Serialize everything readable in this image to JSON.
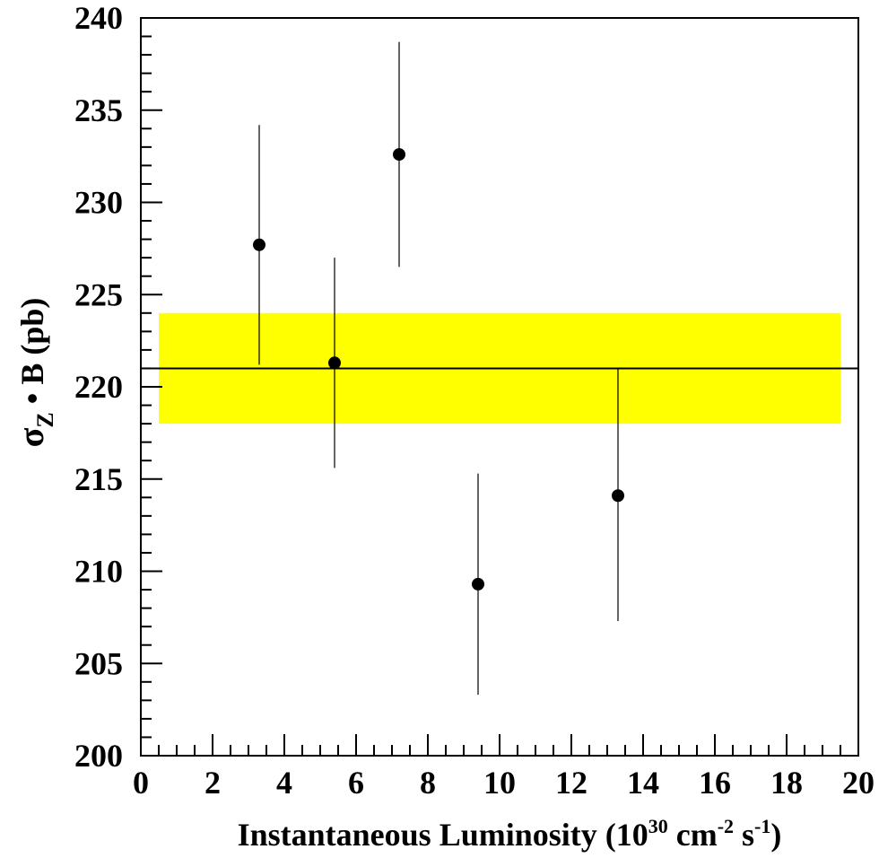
{
  "chart_data": {
    "type": "scatter",
    "xlabel": {
      "parts": [
        "Instantaneous Luminosity (10",
        "30",
        " cm",
        "-2",
        " s",
        "-1",
        ")"
      ]
    },
    "ylabel": {
      "sigma": "σ",
      "sub": "Z",
      "rest": " • B (pb)"
    },
    "xlim": [
      0,
      20
    ],
    "ylim": [
      200,
      240
    ],
    "xticks": [
      "0",
      "2",
      "4",
      "6",
      "8",
      "10",
      "12",
      "14",
      "16",
      "18",
      "20"
    ],
    "yticks": [
      "200",
      "205",
      "210",
      "215",
      "220",
      "225",
      "230",
      "235",
      "240"
    ],
    "points": [
      {
        "x": 3.3,
        "y": 227.7,
        "ylow": 221.2,
        "yhigh": 234.2
      },
      {
        "x": 5.4,
        "y": 221.3,
        "ylow": 215.6,
        "yhigh": 227.0
      },
      {
        "x": 7.2,
        "y": 232.6,
        "ylow": 226.5,
        "yhigh": 238.7
      },
      {
        "x": 9.4,
        "y": 209.3,
        "ylow": 203.3,
        "yhigh": 215.3
      },
      {
        "x": 13.3,
        "y": 214.1,
        "ylow": 207.3,
        "yhigh": 221.0
      }
    ],
    "average_line": 221.0,
    "band": {
      "ymin": 218.0,
      "ymax": 224.0,
      "xmin": 0.5,
      "xmax": 19.5,
      "color": "#ffff00"
    },
    "marker_color": "#000000",
    "grid": false
  }
}
